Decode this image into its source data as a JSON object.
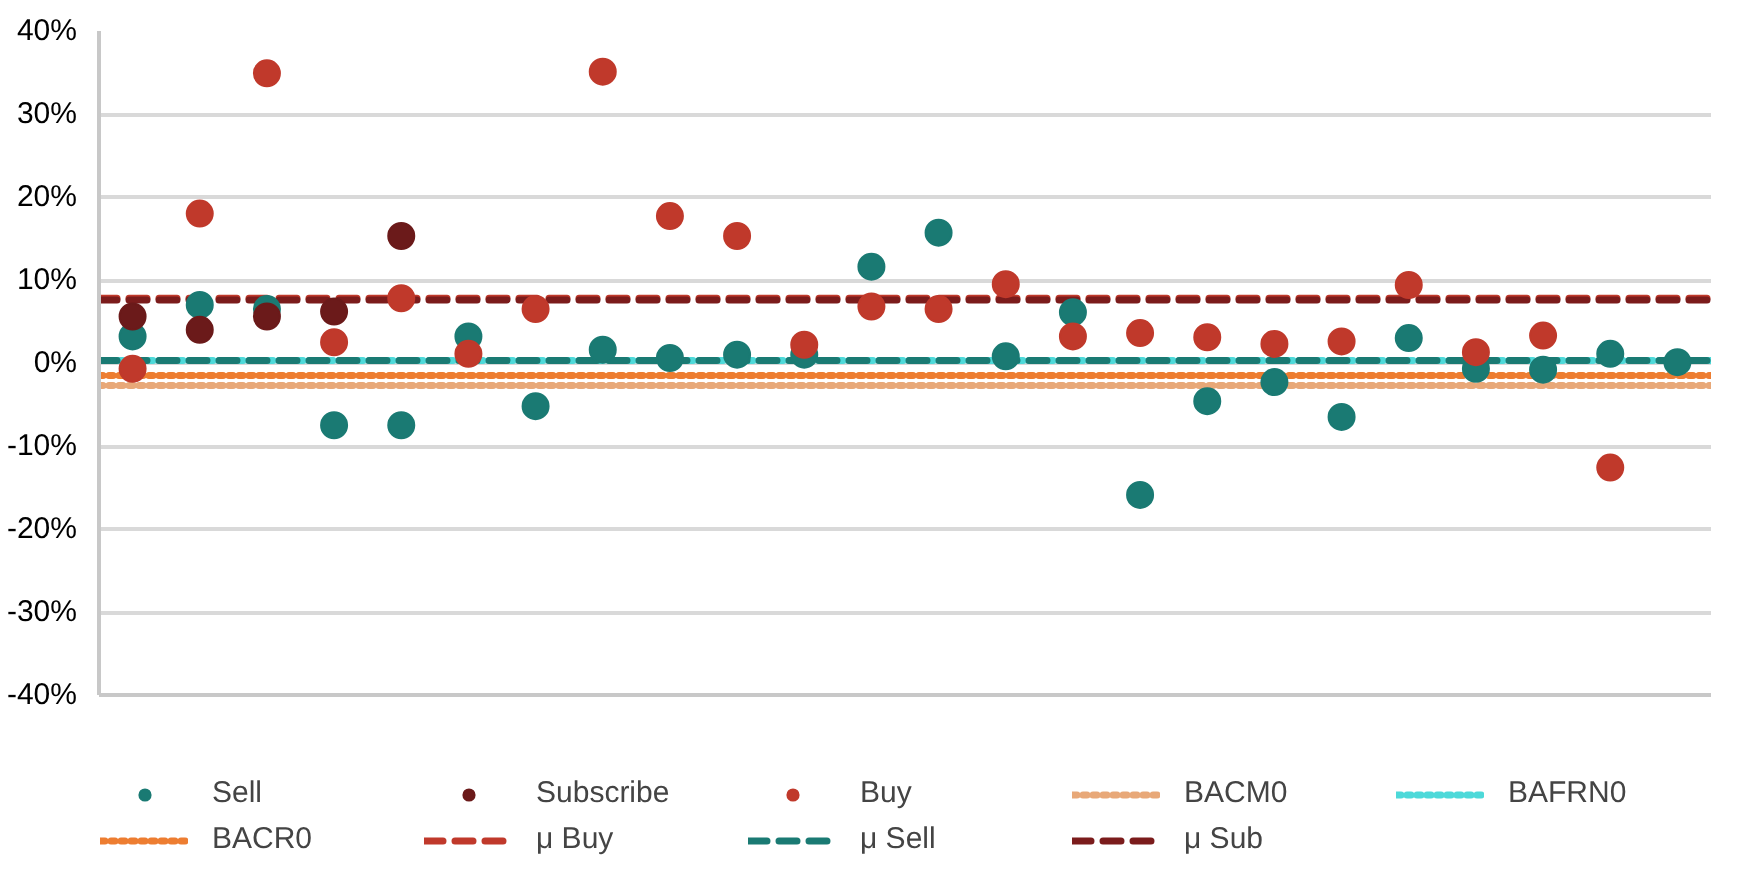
{
  "chart_data": {
    "type": "scatter",
    "categories": [
      null,
      null,
      null,
      null,
      null,
      null,
      null,
      null,
      null,
      null,
      null,
      null,
      null,
      null,
      null,
      null,
      null,
      null,
      null,
      null,
      null,
      null,
      null,
      null
    ],
    "ylim": [
      -40,
      40
    ],
    "yticks": [
      {
        "value": -40,
        "label": "-40%"
      },
      {
        "value": -30,
        "label": "-30%"
      },
      {
        "value": -20,
        "label": "-20%"
      },
      {
        "value": -10,
        "label": "-10%"
      },
      {
        "value": 0,
        "label": "0%"
      },
      {
        "value": 10,
        "label": "10%"
      },
      {
        "value": 20,
        "label": "20%"
      },
      {
        "value": 30,
        "label": "30%"
      },
      {
        "value": 40,
        "label": "40%"
      }
    ],
    "tick_labels": "y",
    "grid": "y",
    "legend": "bottom",
    "marker": "circle",
    "series": [
      {
        "name": "Sell",
        "color": "#1a7a73",
        "values": [
          3.2,
          7,
          6.5,
          -7.5,
          -7.5,
          3.2,
          -5.2,
          1.6,
          0.6,
          1,
          1,
          11.6,
          15.7,
          0.8,
          6.1,
          -15.9,
          -4.6,
          -2.3,
          -6.5,
          3,
          -0.7,
          -0.8,
          1.1,
          0.1
        ]
      },
      {
        "name": "Subscribe",
        "color": "#6b1a1a",
        "values": [
          5.6,
          4,
          5.6,
          6.2,
          15.3,
          null,
          null,
          null,
          null,
          null,
          null,
          null,
          null,
          null,
          null,
          null,
          null,
          null,
          null,
          null,
          null,
          null,
          null,
          null
        ]
      },
      {
        "name": "Buy",
        "color": "#c0392b",
        "values": [
          -0.7,
          18,
          34.9,
          2.5,
          7.8,
          1.1,
          6.5,
          35.1,
          17.7,
          15.3,
          2.2,
          6.8,
          6.5,
          9.5,
          3.2,
          3.6,
          3.1,
          2.3,
          2.6,
          9.4,
          1.3,
          3.3,
          -12.6,
          null
        ]
      }
    ],
    "ref_lines": [
      {
        "axis": "y",
        "value": -2.7,
        "label": "BACM0",
        "color": "#e8a878",
        "line_style": "dotted"
      },
      {
        "axis": "y",
        "value": 0.3,
        "label": "BAFRN0",
        "color": "#4dd9d9",
        "line_style": "dotted"
      },
      {
        "axis": "y",
        "value": -1.5,
        "label": "BACR0",
        "color": "#ed7d31",
        "line_style": "dotted"
      },
      {
        "axis": "y",
        "value": 7.8,
        "label": "μ Buy",
        "color": "#c0392b",
        "line_style": "dashed"
      },
      {
        "axis": "y",
        "value": 0.3,
        "label": "μ Sell",
        "color": "#1a7a73",
        "line_style": "dashed"
      },
      {
        "axis": "y",
        "value": 7.6,
        "label": "μ Sub",
        "color": "#7b1c1c",
        "line_style": "dashed"
      }
    ]
  }
}
